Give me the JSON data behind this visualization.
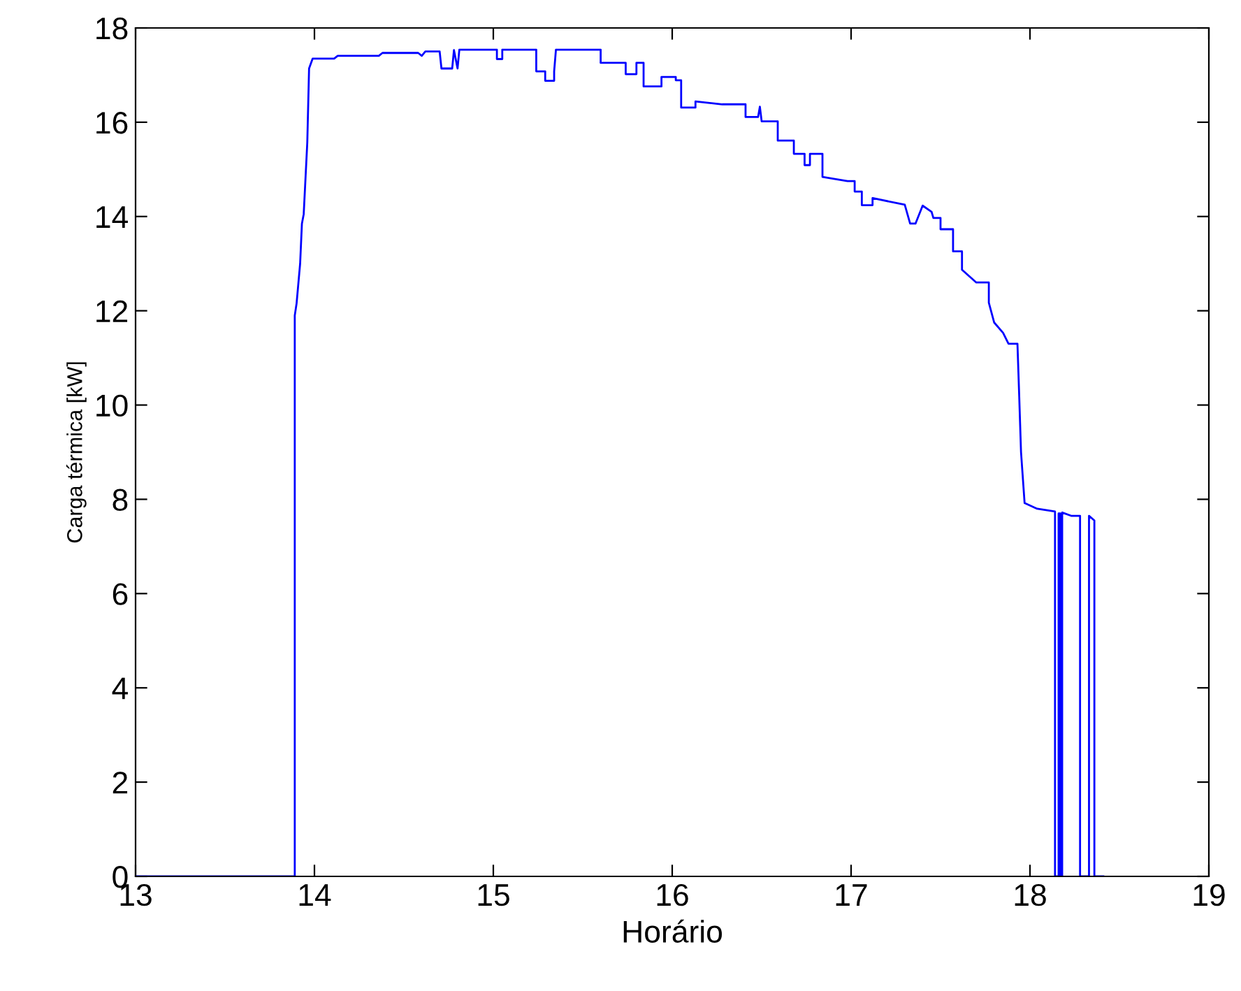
{
  "chart_data": {
    "type": "line",
    "xlabel": "Horário",
    "ylabel": "Carga térmica [kW]",
    "xlim": [
      13,
      19
    ],
    "xticks": [
      13,
      14,
      15,
      16,
      17,
      18,
      19
    ],
    "ylim": [
      0,
      18
    ],
    "yticks": [
      0,
      2,
      4,
      6,
      8,
      10,
      12,
      14,
      16,
      18
    ],
    "grid": false,
    "marker": "none",
    "line_style": "solid",
    "series": [
      {
        "color": "#0000ff",
        "x": [
          13.0,
          13.89,
          13.89,
          13.9,
          13.92,
          13.93,
          13.94,
          13.96,
          13.97,
          13.99,
          14.11,
          14.13,
          14.36,
          14.38,
          14.58,
          14.6,
          14.62,
          14.7,
          14.71,
          14.77,
          14.78,
          14.8,
          14.81,
          15.02,
          15.02,
          15.05,
          15.05,
          15.24,
          15.24,
          15.29,
          15.29,
          15.34,
          15.34,
          15.35,
          15.6,
          15.6,
          15.74,
          15.74,
          15.8,
          15.8,
          15.84,
          15.84,
          15.94,
          15.94,
          16.02,
          16.02,
          16.05,
          16.05,
          16.13,
          16.13,
          16.28,
          16.41,
          16.41,
          16.48,
          16.49,
          16.5,
          16.59,
          16.59,
          16.68,
          16.68,
          16.74,
          16.74,
          16.77,
          16.77,
          16.84,
          16.84,
          16.98,
          17.02,
          17.02,
          17.06,
          17.06,
          17.12,
          17.12,
          17.3,
          17.33,
          17.36,
          17.4,
          17.45,
          17.46,
          17.5,
          17.5,
          17.57,
          17.57,
          17.62,
          17.62,
          17.7,
          17.77,
          17.77,
          17.8,
          17.85,
          17.88,
          17.93,
          17.94,
          17.95,
          17.97,
          18.04,
          18.14,
          18.14,
          18.16,
          18.16,
          18.17,
          18.17,
          18.18,
          18.18,
          18.23,
          18.28,
          18.28,
          18.33,
          18.33,
          18.36,
          18.36,
          18.41
        ],
        "values": [
          0,
          0,
          11.9,
          12.15,
          13.0,
          13.85,
          14.05,
          15.57,
          17.14,
          17.35,
          17.35,
          17.41,
          17.41,
          17.47,
          17.47,
          17.41,
          17.5,
          17.5,
          17.14,
          17.14,
          17.53,
          17.14,
          17.54,
          17.54,
          17.34,
          17.34,
          17.54,
          17.54,
          17.08,
          17.08,
          16.88,
          16.88,
          17.08,
          17.54,
          17.54,
          17.26,
          17.26,
          17.02,
          17.02,
          17.26,
          17.26,
          16.76,
          16.76,
          16.96,
          16.96,
          16.89,
          16.89,
          16.31,
          16.31,
          16.44,
          16.38,
          16.38,
          16.11,
          16.11,
          16.33,
          16.02,
          16.02,
          15.61,
          15.61,
          15.33,
          15.33,
          15.09,
          15.09,
          15.33,
          15.33,
          14.84,
          14.75,
          14.75,
          14.53,
          14.53,
          14.24,
          14.24,
          14.39,
          14.25,
          13.85,
          13.85,
          14.23,
          14.1,
          13.97,
          13.97,
          13.73,
          13.73,
          13.26,
          13.26,
          12.87,
          12.6,
          12.6,
          12.17,
          11.75,
          11.53,
          11.3,
          11.3,
          10.17,
          9.0,
          7.92,
          7.8,
          7.74,
          0,
          0,
          7.7,
          7.7,
          0,
          0,
          7.72,
          7.65,
          7.65,
          0,
          0,
          7.65,
          7.55,
          0,
          0
        ]
      }
    ]
  }
}
